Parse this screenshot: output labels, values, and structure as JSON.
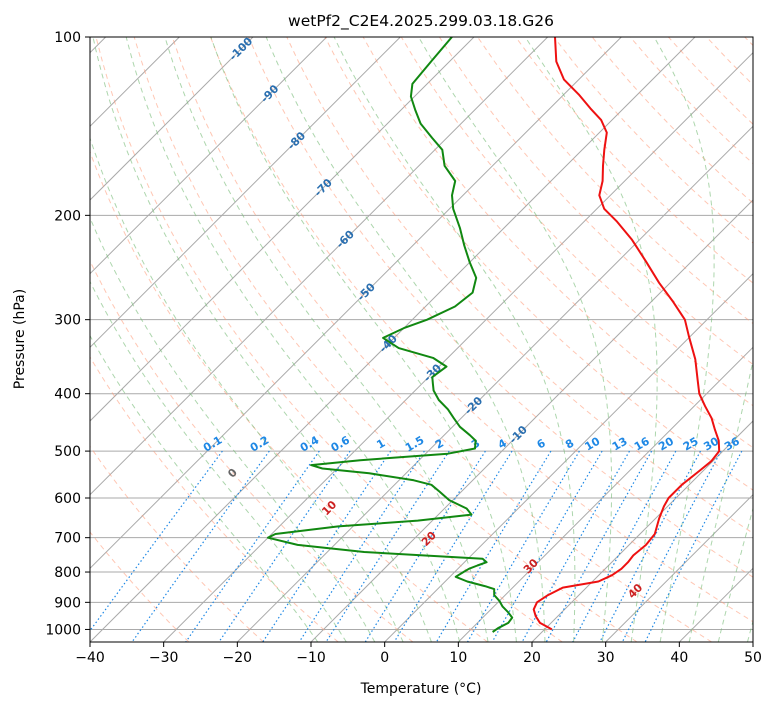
{
  "chart_data": {
    "type": "line",
    "title": "wetPf2_C2E4.2025.299.03.18.G26",
    "xlabel": "Temperature (°C)",
    "ylabel": "Pressure (hPa)",
    "xlim": [
      -40,
      50
    ],
    "ylim": [
      1050,
      100
    ],
    "y_scale": "log",
    "grid": true,
    "x_ticks": [
      -40,
      -30,
      -20,
      -10,
      0,
      10,
      20,
      30,
      40,
      50
    ],
    "y_ticks": [
      1000,
      900,
      800,
      700,
      600,
      500,
      400,
      300,
      200,
      100
    ],
    "isotherm_labels": [
      -100,
      -90,
      -80,
      -70,
      -60,
      -50,
      -40,
      -30,
      -20,
      -10
    ],
    "mixing_ratio_labels": [
      "0.1",
      "0.2",
      "0.4",
      "0.6",
      "1",
      "1.5",
      "2",
      "3",
      "4",
      "6",
      "8",
      "10",
      "13",
      "16",
      "20",
      "25",
      "30",
      "36"
    ],
    "dry_adiabat_labels": [
      0,
      10,
      20,
      30,
      40
    ],
    "colors": {
      "temperature": "#ee1111",
      "dewpoint": "#118811",
      "isotherm_label": "#2a6fb0",
      "mixing_ratio": "#1e88e5",
      "dry_adiabat": "#ff9977",
      "dry_adiabat_label": "#cc2222",
      "moist_adiabat": "#77bb77",
      "grid": "#aaaaaa"
    },
    "series": [
      {
        "key": "temperature",
        "points": [
          [
            1000,
            21.0
          ],
          [
            975,
            18.5
          ],
          [
            950,
            17.0
          ],
          [
            925,
            15.8
          ],
          [
            900,
            15.3
          ],
          [
            875,
            15.8
          ],
          [
            850,
            16.8
          ],
          [
            830,
            20.8
          ],
          [
            810,
            21.8
          ],
          [
            790,
            22.2
          ],
          [
            770,
            22.2
          ],
          [
            750,
            22.0
          ],
          [
            720,
            22.3
          ],
          [
            690,
            22.0
          ],
          [
            650,
            20.5
          ],
          [
            620,
            19.5
          ],
          [
            600,
            19.0
          ],
          [
            570,
            19.0
          ],
          [
            540,
            19.5
          ],
          [
            520,
            19.8
          ],
          [
            500,
            19.5
          ],
          [
            480,
            18.0
          ],
          [
            460,
            16.0
          ],
          [
            440,
            14.0
          ],
          [
            420,
            11.5
          ],
          [
            400,
            9.0
          ],
          [
            380,
            7.0
          ],
          [
            350,
            3.8
          ],
          [
            320,
            -0.2
          ],
          [
            300,
            -3.0
          ],
          [
            280,
            -7.0
          ],
          [
            260,
            -11.5
          ],
          [
            240,
            -16.0
          ],
          [
            220,
            -21.0
          ],
          [
            205,
            -25.5
          ],
          [
            195,
            -29.0
          ],
          [
            185,
            -31.5
          ],
          [
            175,
            -33.0
          ],
          [
            165,
            -35.0
          ],
          [
            155,
            -37.0
          ],
          [
            145,
            -39.0
          ],
          [
            138,
            -41.5
          ],
          [
            132,
            -44.5
          ],
          [
            125,
            -48.0
          ],
          [
            118,
            -52.0
          ],
          [
            110,
            -55.5
          ],
          [
            100,
            -59.0
          ]
        ]
      },
      {
        "key": "dewpoint",
        "points": [
          [
            1010,
            13.3
          ],
          [
            995,
            13.5
          ],
          [
            975,
            14.2
          ],
          [
            955,
            14.0
          ],
          [
            935,
            12.7
          ],
          [
            915,
            11.2
          ],
          [
            895,
            10.0
          ],
          [
            875,
            8.5
          ],
          [
            855,
            7.7
          ],
          [
            845,
            6.0
          ],
          [
            830,
            3.0
          ],
          [
            815,
            0.8
          ],
          [
            800,
            1.2
          ],
          [
            790,
            1.5
          ],
          [
            780,
            2.2
          ],
          [
            770,
            3.0
          ],
          [
            760,
            2.0
          ],
          [
            740,
            -15.0
          ],
          [
            720,
            -25.0
          ],
          [
            700,
            -30.0
          ],
          [
            690,
            -29.5
          ],
          [
            670,
            -22.0
          ],
          [
            655,
            -12.0
          ],
          [
            640,
            -5.5
          ],
          [
            625,
            -7.0
          ],
          [
            605,
            -10.5
          ],
          [
            585,
            -13.0
          ],
          [
            570,
            -15.0
          ],
          [
            560,
            -18.0
          ],
          [
            545,
            -25.0
          ],
          [
            535,
            -32.0
          ],
          [
            528,
            -34.0
          ],
          [
            518,
            -28.0
          ],
          [
            505,
            -17.0
          ],
          [
            495,
            -14.0
          ],
          [
            480,
            -15.0
          ],
          [
            470,
            -16.5
          ],
          [
            455,
            -19.0
          ],
          [
            440,
            -21.0
          ],
          [
            425,
            -23.0
          ],
          [
            410,
            -25.5
          ],
          [
            395,
            -27.5
          ],
          [
            385,
            -28.5
          ],
          [
            375,
            -29.5
          ],
          [
            360,
            -29.0
          ],
          [
            348,
            -32.0
          ],
          [
            335,
            -38.0
          ],
          [
            322,
            -41.5
          ],
          [
            310,
            -40.0
          ],
          [
            300,
            -38.0
          ],
          [
            285,
            -36.0
          ],
          [
            270,
            -35.5
          ],
          [
            255,
            -37.0
          ],
          [
            240,
            -40.0
          ],
          [
            225,
            -43.0
          ],
          [
            210,
            -46.0
          ],
          [
            195,
            -49.5
          ],
          [
            185,
            -51.5
          ],
          [
            175,
            -53.0
          ],
          [
            165,
            -56.5
          ],
          [
            155,
            -59.0
          ],
          [
            148,
            -62.0
          ],
          [
            140,
            -65.5
          ],
          [
            133,
            -68.0
          ],
          [
            126,
            -70.5
          ],
          [
            120,
            -72.0
          ],
          [
            110,
            -72.5
          ],
          [
            100,
            -73.0
          ]
        ]
      }
    ]
  }
}
